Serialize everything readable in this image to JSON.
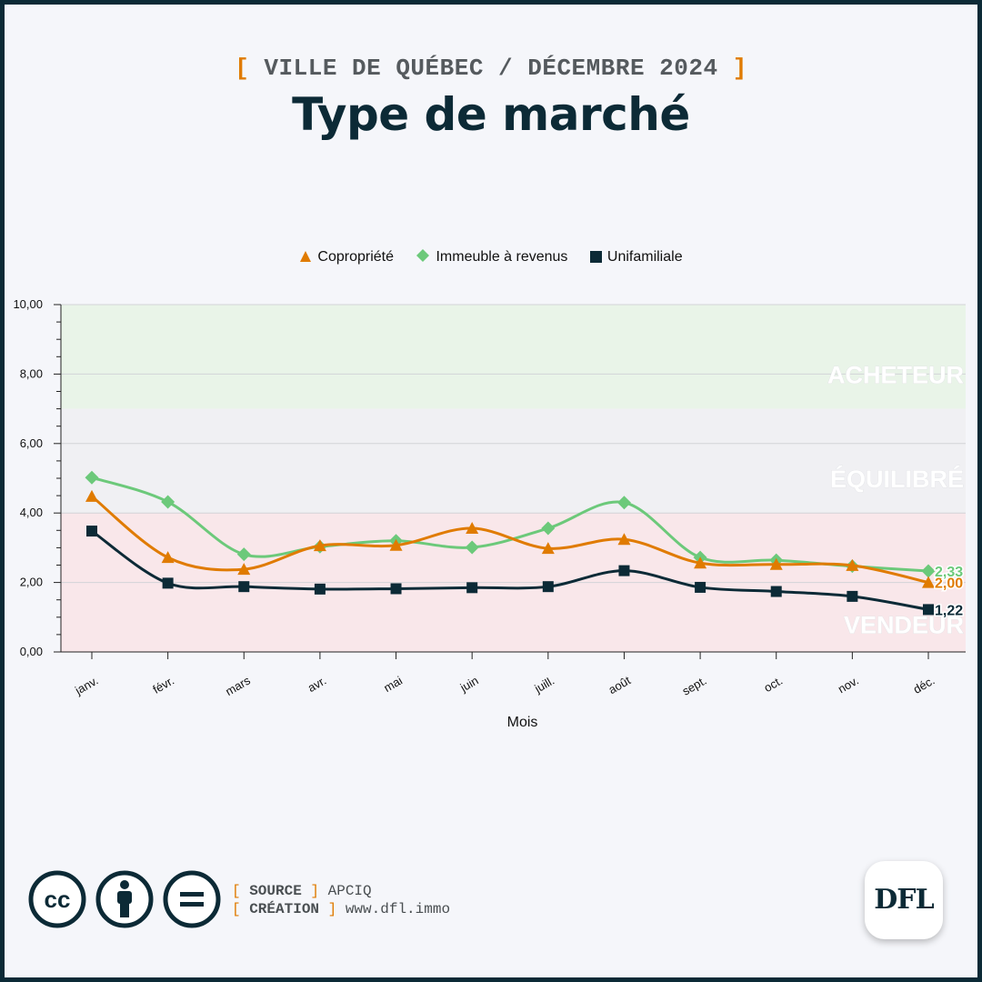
{
  "header": {
    "kicker_text": "VILLE DE QUÉBEC / DÉCEMBRE 2024",
    "bracket_open": "[",
    "bracket_close": "]",
    "title": "Type de marché"
  },
  "colors": {
    "copropriete": "#e07b00",
    "immeuble": "#6cc97a",
    "unifamiliale": "#0c2a36",
    "zone_acheteur": "#e9f4e8",
    "zone_equilibre": "#f0f0f3",
    "zone_vendeur": "#f9e7ea"
  },
  "chart_data": {
    "type": "line",
    "xlabel": "Mois",
    "ylabel": "",
    "ylim": [
      0,
      10
    ],
    "y_ticks": [
      "0,00",
      "2,00",
      "4,00",
      "6,00",
      "8,00",
      "10,00"
    ],
    "categories": [
      "janv.",
      "févr.",
      "mars",
      "avr.",
      "mai",
      "juin",
      "juill.",
      "août",
      "sept.",
      "oct.",
      "nov.",
      "déc."
    ],
    "series": [
      {
        "name": "Copropriété",
        "marker": "triangle",
        "color": "#e07b00",
        "values": [
          4.48,
          2.72,
          2.38,
          3.06,
          3.07,
          3.56,
          2.98,
          3.24,
          2.56,
          2.52,
          2.49,
          2.0
        ],
        "end_label": "2,00"
      },
      {
        "name": "Immeuble à revenus",
        "marker": "diamond",
        "color": "#6cc97a",
        "values": [
          5.02,
          4.32,
          2.81,
          3.03,
          3.2,
          3.01,
          3.56,
          4.3,
          2.72,
          2.64,
          2.47,
          2.33
        ],
        "end_label": "2,33"
      },
      {
        "name": "Unifamiliale",
        "marker": "square",
        "color": "#0c2a36",
        "values": [
          3.48,
          1.98,
          1.88,
          1.81,
          1.82,
          1.85,
          1.88,
          2.34,
          1.86,
          1.74,
          1.6,
          1.22
        ],
        "end_label": "1,22"
      }
    ],
    "zones": [
      {
        "label": "ACHETEUR",
        "from": 7,
        "to": 10
      },
      {
        "label": "ÉQUILIBRÉ",
        "from": 4,
        "to": 7
      },
      {
        "label": "VENDEUR",
        "from": 0,
        "to": 4
      }
    ],
    "grid": true,
    "legend": "top-center"
  },
  "footer": {
    "icons": [
      "cc-icon",
      "attribution-icon",
      "no-derivatives-icon"
    ],
    "cc_text": "cc",
    "credits": [
      {
        "key": "SOURCE",
        "value": "APCIQ"
      },
      {
        "key": "CRÉATION",
        "value": "www.dfl.immo"
      }
    ],
    "logo_text": "DFL"
  }
}
